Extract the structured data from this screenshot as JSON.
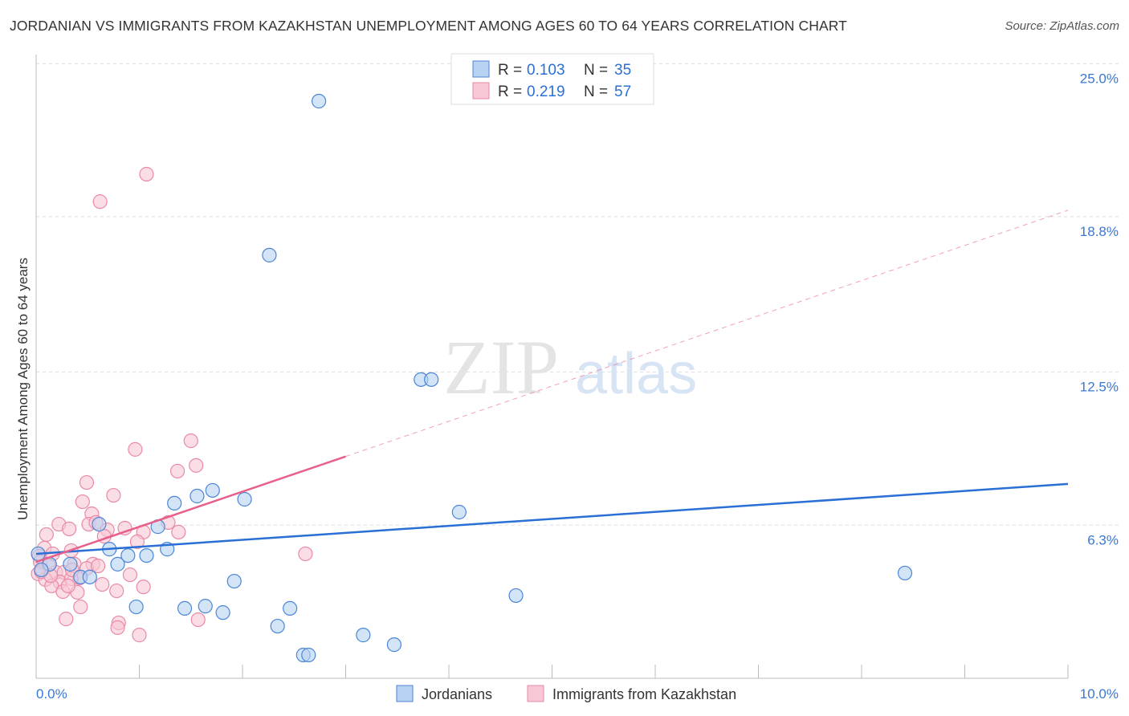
{
  "title": "JORDANIAN VS IMMIGRANTS FROM KAZAKHSTAN UNEMPLOYMENT AMONG AGES 60 TO 64 YEARS CORRELATION CHART",
  "source": "Source: ZipAtlas.com",
  "watermark": "ZIPatlas",
  "chart_data": {
    "type": "scatter",
    "title": "JORDANIAN VS IMMIGRANTS FROM KAZAKHSTAN UNEMPLOYMENT AMONG AGES 60 TO 64 YEARS CORRELATION CHART",
    "xlabel": "",
    "ylabel": "Unemployment Among Ages 60 to 64 years",
    "xlim": [
      0,
      10
    ],
    "ylim": [
      0,
      25
    ],
    "x_tick_labels": {
      "min": "0.0%",
      "max": "10.0%"
    },
    "y_ticks": [
      {
        "value": 25.0,
        "label": "25.0%"
      },
      {
        "value": 18.8,
        "label": "18.8%"
      },
      {
        "value": 12.5,
        "label": "12.5%"
      },
      {
        "value": 6.3,
        "label": "6.3%"
      }
    ],
    "grid": true,
    "legend_placement": "top-center",
    "legend": [
      {
        "r_label": "R = ",
        "r": "0.103",
        "n_label": "N = ",
        "n": "35"
      },
      {
        "r_label": "R = ",
        "r": "0.219",
        "n_label": "N = ",
        "n": "57"
      }
    ],
    "series": [
      {
        "name": "Jordanians",
        "color": "#4a86d8",
        "fill": "#b8d2f2",
        "trend_color": "#2a6fd6",
        "trend": {
          "x0": 0,
          "y0": 5.14,
          "x1": 10,
          "y1": 7.97,
          "solid_to": 10
        },
        "points": [
          [
            2.74,
            23.48
          ],
          [
            2.26,
            17.24
          ],
          [
            3.73,
            12.2
          ],
          [
            3.83,
            12.2
          ],
          [
            4.1,
            6.83
          ],
          [
            8.42,
            4.36
          ],
          [
            4.65,
            3.45
          ],
          [
            1.71,
            7.71
          ],
          [
            1.56,
            7.48
          ],
          [
            2.02,
            7.35
          ],
          [
            1.34,
            7.19
          ],
          [
            1.18,
            6.24
          ],
          [
            0.61,
            6.34
          ],
          [
            0.71,
            5.33
          ],
          [
            0.89,
            5.07
          ],
          [
            1.07,
            5.07
          ],
          [
            1.27,
            5.33
          ],
          [
            0.79,
            4.72
          ],
          [
            0.33,
            4.72
          ],
          [
            0.13,
            4.72
          ],
          [
            0.05,
            4.49
          ],
          [
            0.43,
            4.2
          ],
          [
            0.52,
            4.2
          ],
          [
            1.92,
            4.03
          ],
          [
            0.97,
            2.99
          ],
          [
            1.44,
            2.93
          ],
          [
            1.64,
            3.02
          ],
          [
            1.81,
            2.76
          ],
          [
            2.46,
            2.93
          ],
          [
            2.34,
            2.21
          ],
          [
            3.17,
            1.85
          ],
          [
            3.47,
            1.46
          ],
          [
            2.59,
            1.04
          ],
          [
            2.64,
            1.04
          ],
          [
            0.02,
            5.14
          ]
        ]
      },
      {
        "name": "Immigrants from Kazakhstan",
        "color": "#e88aa6",
        "fill": "#f8c6d4",
        "trend_color": "#e8608a",
        "trend": {
          "x0": 0,
          "y0": 4.81,
          "x1": 10,
          "y1": 19.06,
          "solid_to": 3.0
        },
        "points": [
          [
            1.07,
            20.52
          ],
          [
            0.62,
            19.41
          ],
          [
            0.96,
            9.37
          ],
          [
            1.5,
            9.72
          ],
          [
            1.55,
            8.72
          ],
          [
            1.37,
            8.49
          ],
          [
            0.49,
            8.03
          ],
          [
            0.75,
            7.51
          ],
          [
            0.45,
            7.25
          ],
          [
            0.54,
            6.76
          ],
          [
            0.22,
            6.34
          ],
          [
            0.32,
            6.15
          ],
          [
            0.51,
            6.34
          ],
          [
            0.58,
            6.41
          ],
          [
            0.69,
            6.11
          ],
          [
            0.86,
            6.18
          ],
          [
            1.04,
            6.02
          ],
          [
            1.28,
            6.41
          ],
          [
            1.38,
            6.02
          ],
          [
            0.66,
            5.85
          ],
          [
            0.98,
            5.63
          ],
          [
            0.1,
            5.92
          ],
          [
            0.08,
            5.37
          ],
          [
            0.34,
            5.27
          ],
          [
            0.16,
            5.14
          ],
          [
            0.03,
            5.04
          ],
          [
            2.61,
            5.14
          ],
          [
            0.04,
            4.81
          ],
          [
            0.37,
            4.72
          ],
          [
            0.55,
            4.72
          ],
          [
            0.19,
            4.39
          ],
          [
            0.27,
            4.39
          ],
          [
            0.42,
            4.16
          ],
          [
            0.02,
            4.33
          ],
          [
            0.91,
            4.29
          ],
          [
            0.09,
            4.1
          ],
          [
            0.23,
            4.0
          ],
          [
            0.15,
            3.84
          ],
          [
            0.34,
            4.13
          ],
          [
            0.64,
            3.9
          ],
          [
            1.04,
            3.8
          ],
          [
            0.26,
            3.61
          ],
          [
            0.4,
            3.58
          ],
          [
            0.78,
            3.64
          ],
          [
            0.43,
            2.99
          ],
          [
            0.29,
            2.5
          ],
          [
            0.8,
            2.34
          ],
          [
            1.57,
            2.47
          ],
          [
            0.79,
            2.15
          ],
          [
            1.0,
            1.85
          ],
          [
            0.12,
            4.68
          ],
          [
            0.05,
            4.42
          ],
          [
            0.49,
            4.55
          ],
          [
            0.31,
            3.84
          ],
          [
            0.14,
            4.26
          ],
          [
            0.35,
            4.49
          ],
          [
            0.6,
            4.65
          ]
        ]
      }
    ]
  }
}
